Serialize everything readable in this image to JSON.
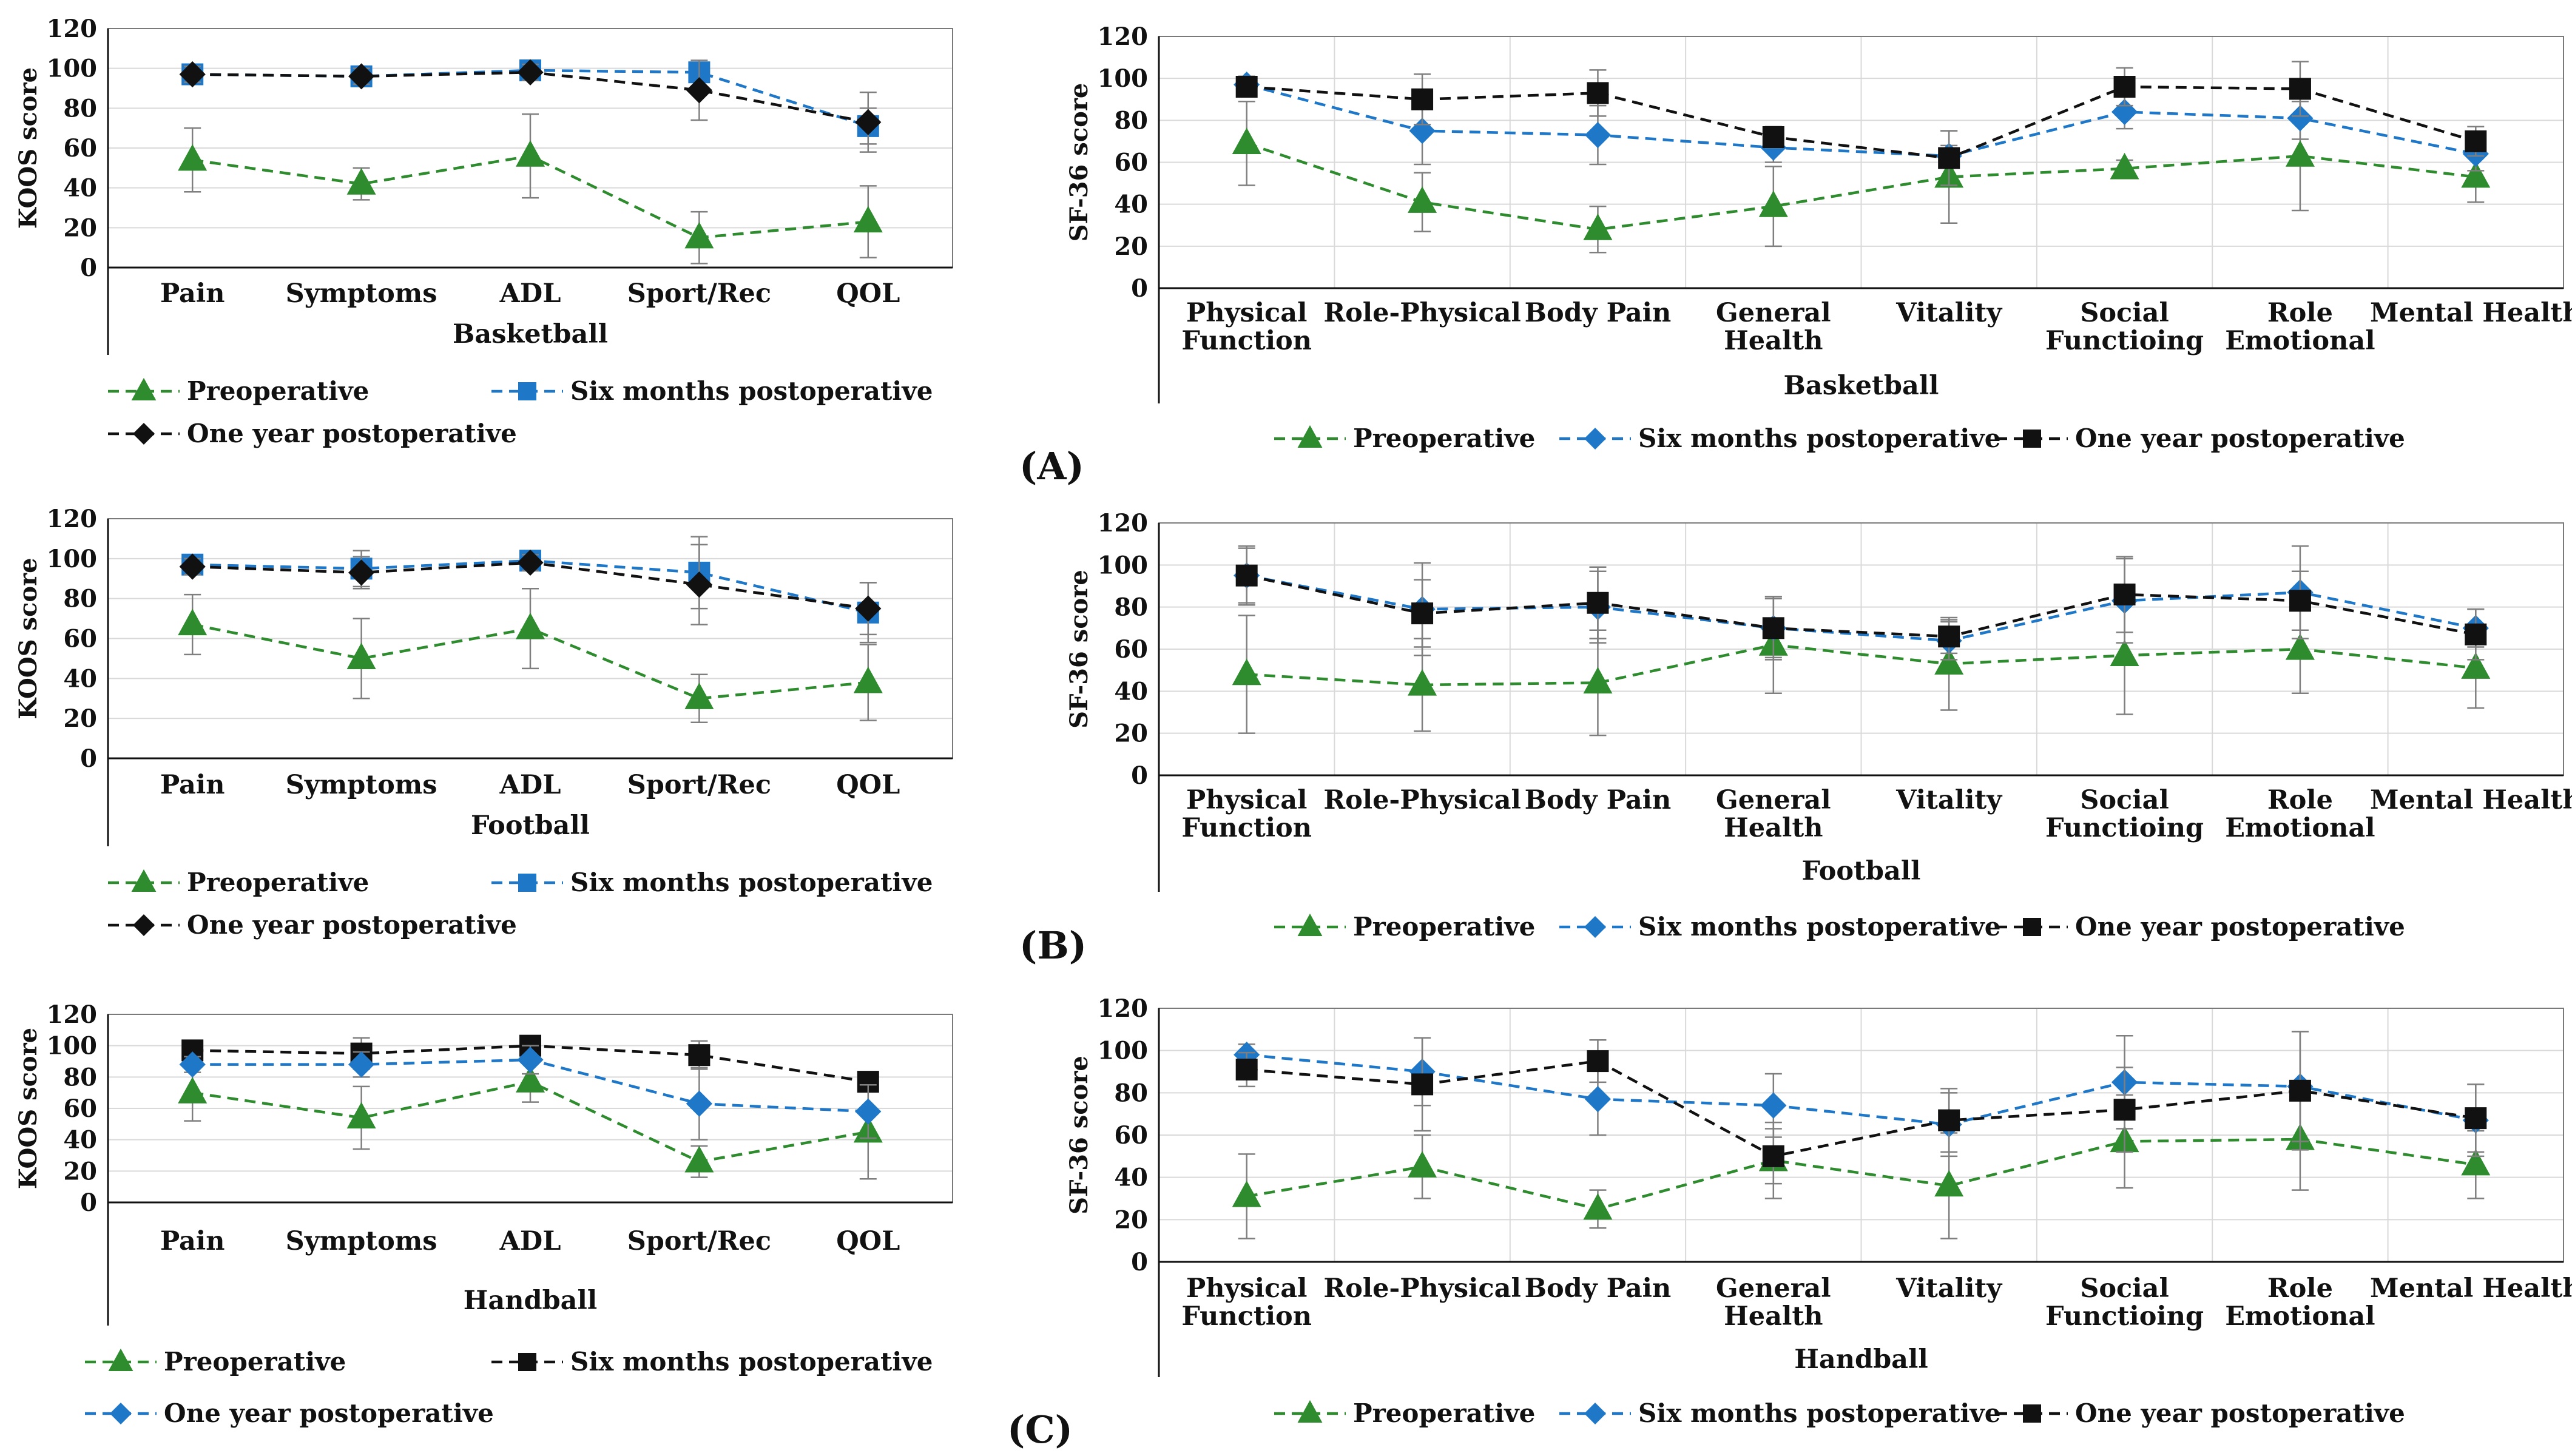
{
  "panel_labels": [
    "(A)",
    "(B)",
    "(C)"
  ],
  "colors": {
    "preop": "#2e8b2e",
    "six": "#1f77c8",
    "oneyear": "#111111",
    "err": "#7f7f7f",
    "grid": "#d9d9d9"
  },
  "chart_data": [
    {
      "id": "koos-basketball",
      "type": "line",
      "sport": "Basketball",
      "ylabel": "KOOS score",
      "ylim": [
        0,
        120
      ],
      "yticks": [
        0,
        20,
        40,
        60,
        80,
        100,
        120
      ],
      "categories": [
        "Pain",
        "Symptoms",
        "ADL",
        "Sport/Rec",
        "QOL"
      ],
      "series": [
        {
          "name": "Preoperative",
          "color": "#2e8b2e",
          "marker": "triangle",
          "values": [
            54,
            42,
            56,
            15,
            23
          ],
          "err": [
            16,
            8,
            21,
            13,
            18
          ]
        },
        {
          "name": "Six months postoperative",
          "color": "#1f77c8",
          "marker": "square",
          "values": [
            97,
            96,
            99,
            98,
            71
          ],
          "err": [
            3,
            3,
            3,
            4,
            9
          ]
        },
        {
          "name": "One year  postoperative",
          "color": "#111111",
          "marker": "diamond",
          "values": [
            97,
            96,
            98,
            89,
            73
          ],
          "err": [
            4,
            4,
            4,
            15,
            15
          ]
        }
      ],
      "legend_rows": [
        [
          0,
          1
        ],
        [
          2
        ]
      ]
    },
    {
      "id": "sf36-basketball",
      "type": "line",
      "sport": "Basketball",
      "ylabel": "SF-36 score",
      "ylim": [
        0,
        120
      ],
      "yticks": [
        0,
        20,
        40,
        60,
        80,
        100,
        120
      ],
      "categories": [
        "Physical|Function",
        "Role-Physical",
        "Body Pain",
        "General|Health",
        "Vitality",
        "Social|Functioing",
        "Role|Emotional",
        "Mental Health"
      ],
      "series": [
        {
          "name": "Preoperative",
          "color": "#2e8b2e",
          "marker": "triangle",
          "values": [
            69,
            41,
            28,
            39,
            53,
            57,
            63,
            53
          ],
          "err": [
            20,
            14,
            11,
            19,
            22,
            4,
            26,
            12
          ]
        },
        {
          "name": "Six months postoperative",
          "color": "#1f77c8",
          "marker": "diamond",
          "values": [
            97,
            75,
            73,
            67,
            63,
            84,
            81,
            64
          ],
          "err": [
            4,
            16,
            14,
            7,
            5,
            8,
            10,
            8
          ]
        },
        {
          "name": "One year  postoperative",
          "color": "#111111",
          "marker": "square",
          "values": [
            96,
            90,
            93,
            72,
            62,
            96,
            95,
            70
          ],
          "err": [
            4,
            12,
            11,
            5,
            13,
            9,
            13,
            7
          ]
        }
      ],
      "legend_rows": [
        [
          0,
          1,
          2
        ]
      ]
    },
    {
      "id": "koos-football",
      "type": "line",
      "sport": "Football",
      "ylabel": "KOOS score",
      "ylim": [
        0,
        120
      ],
      "yticks": [
        0,
        20,
        40,
        60,
        80,
        100,
        120
      ],
      "categories": [
        "Pain",
        "Symptoms",
        "ADL",
        "Sport/Rec",
        "QOL"
      ],
      "series": [
        {
          "name": "Preoperative",
          "color": "#2e8b2e",
          "marker": "triangle",
          "values": [
            67,
            50,
            65,
            30,
            38
          ],
          "err": [
            15,
            20,
            20,
            12,
            19
          ]
        },
        {
          "name": "Six months postoperative",
          "color": "#1f77c8",
          "marker": "square",
          "values": [
            97,
            95,
            99,
            93,
            73
          ],
          "err": [
            4,
            9,
            4,
            18,
            15
          ]
        },
        {
          "name": "One year  postoperative",
          "color": "#111111",
          "marker": "diamond",
          "values": [
            96,
            93,
            98,
            87,
            75
          ],
          "err": [
            4,
            8,
            4,
            20,
            13
          ]
        }
      ],
      "legend_rows": [
        [
          0,
          1
        ],
        [
          2
        ]
      ]
    },
    {
      "id": "sf36-football",
      "type": "line",
      "sport": "Football",
      "ylabel": "SF-36 score",
      "ylim": [
        0,
        120
      ],
      "yticks": [
        0,
        20,
        40,
        60,
        80,
        100,
        120
      ],
      "categories": [
        "Physical|Function",
        "Role-Physical",
        "Body Pain",
        "General|Health",
        "Vitality",
        "Social|Functioing",
        "Role|Emotional",
        "Mental Health"
      ],
      "series": [
        {
          "name": "Preoperative",
          "color": "#2e8b2e",
          "marker": "triangle",
          "values": [
            48,
            43,
            44,
            62,
            53,
            57,
            60,
            51
          ],
          "err": [
            28,
            22,
            25,
            23,
            22,
            28,
            21,
            19
          ]
        },
        {
          "name": "Six months postoperative",
          "color": "#1f77c8",
          "marker": "diamond",
          "values": [
            95,
            79,
            80,
            70,
            64,
            83,
            87,
            70
          ],
          "err": [
            13,
            22,
            17,
            14,
            9,
            20,
            22,
            9
          ]
        },
        {
          "name": "One year  postoperative",
          "color": "#111111",
          "marker": "square",
          "values": [
            95,
            77,
            82,
            70,
            66,
            86,
            83,
            67
          ],
          "err": [
            14,
            16,
            17,
            15,
            8,
            18,
            14,
            12
          ]
        }
      ],
      "legend_rows": [
        [
          0,
          1,
          2
        ]
      ]
    },
    {
      "id": "koos-handball",
      "type": "line",
      "sport": "Handball",
      "ylabel": "KOOS score",
      "ylim": [
        0,
        120
      ],
      "yticks": [
        0,
        20,
        40,
        60,
        80,
        100,
        120
      ],
      "categories": [
        "Pain",
        "Symptoms",
        "ADL",
        "Sport/Rec",
        "QOL"
      ],
      "series": [
        {
          "name": "Preoperative",
          "color": "#2e8b2e",
          "marker": "triangle",
          "values": [
            70,
            54,
            77,
            26,
            45
          ],
          "err": [
            18,
            20,
            13,
            10,
            30
          ]
        },
        {
          "name": "Six months postoperative",
          "color": "#111111",
          "marker": "square",
          "values": [
            97,
            95,
            100,
            94,
            77
          ],
          "err": [
            4,
            10,
            4,
            9,
            5
          ]
        },
        {
          "name": "One year  postoperative",
          "color": "#1f77c8",
          "marker": "diamond",
          "values": [
            88,
            88,
            91,
            63,
            58
          ],
          "err": [
            5,
            8,
            9,
            23,
            17
          ]
        }
      ],
      "legend_rows": [
        [
          0,
          1
        ],
        [
          2
        ]
      ]
    },
    {
      "id": "sf36-handball",
      "type": "line",
      "sport": "Handball",
      "ylabel": "SF-36 score",
      "ylim": [
        0,
        120
      ],
      "yticks": [
        0,
        20,
        40,
        60,
        80,
        100,
        120
      ],
      "categories": [
        "Physical|Function",
        "Role-Physical",
        "Body Pain",
        "General|Health",
        "Vitality",
        "Social|Functioing",
        "Role|Emotional",
        "Mental Health"
      ],
      "series": [
        {
          "name": "Preoperative",
          "color": "#2e8b2e",
          "marker": "triangle",
          "values": [
            31,
            45,
            25,
            48,
            36,
            57,
            58,
            46
          ],
          "err": [
            20,
            15,
            9,
            18,
            25,
            22,
            24,
            16
          ]
        },
        {
          "name": "Six months postoperative",
          "color": "#1f77c8",
          "marker": "diamond",
          "values": [
            98,
            90,
            77,
            74,
            65,
            85,
            83,
            67
          ],
          "err": [
            5,
            16,
            17,
            15,
            15,
            22,
            26,
            17
          ]
        },
        {
          "name": "One year  postoperative",
          "color": "#111111",
          "marker": "square",
          "values": [
            91,
            84,
            95,
            50,
            67,
            72,
            81,
            68
          ],
          "err": [
            8,
            22,
            10,
            13,
            15,
            20,
            28,
            16
          ]
        }
      ],
      "legend_rows": [
        [
          0,
          1,
          2
        ]
      ]
    }
  ]
}
